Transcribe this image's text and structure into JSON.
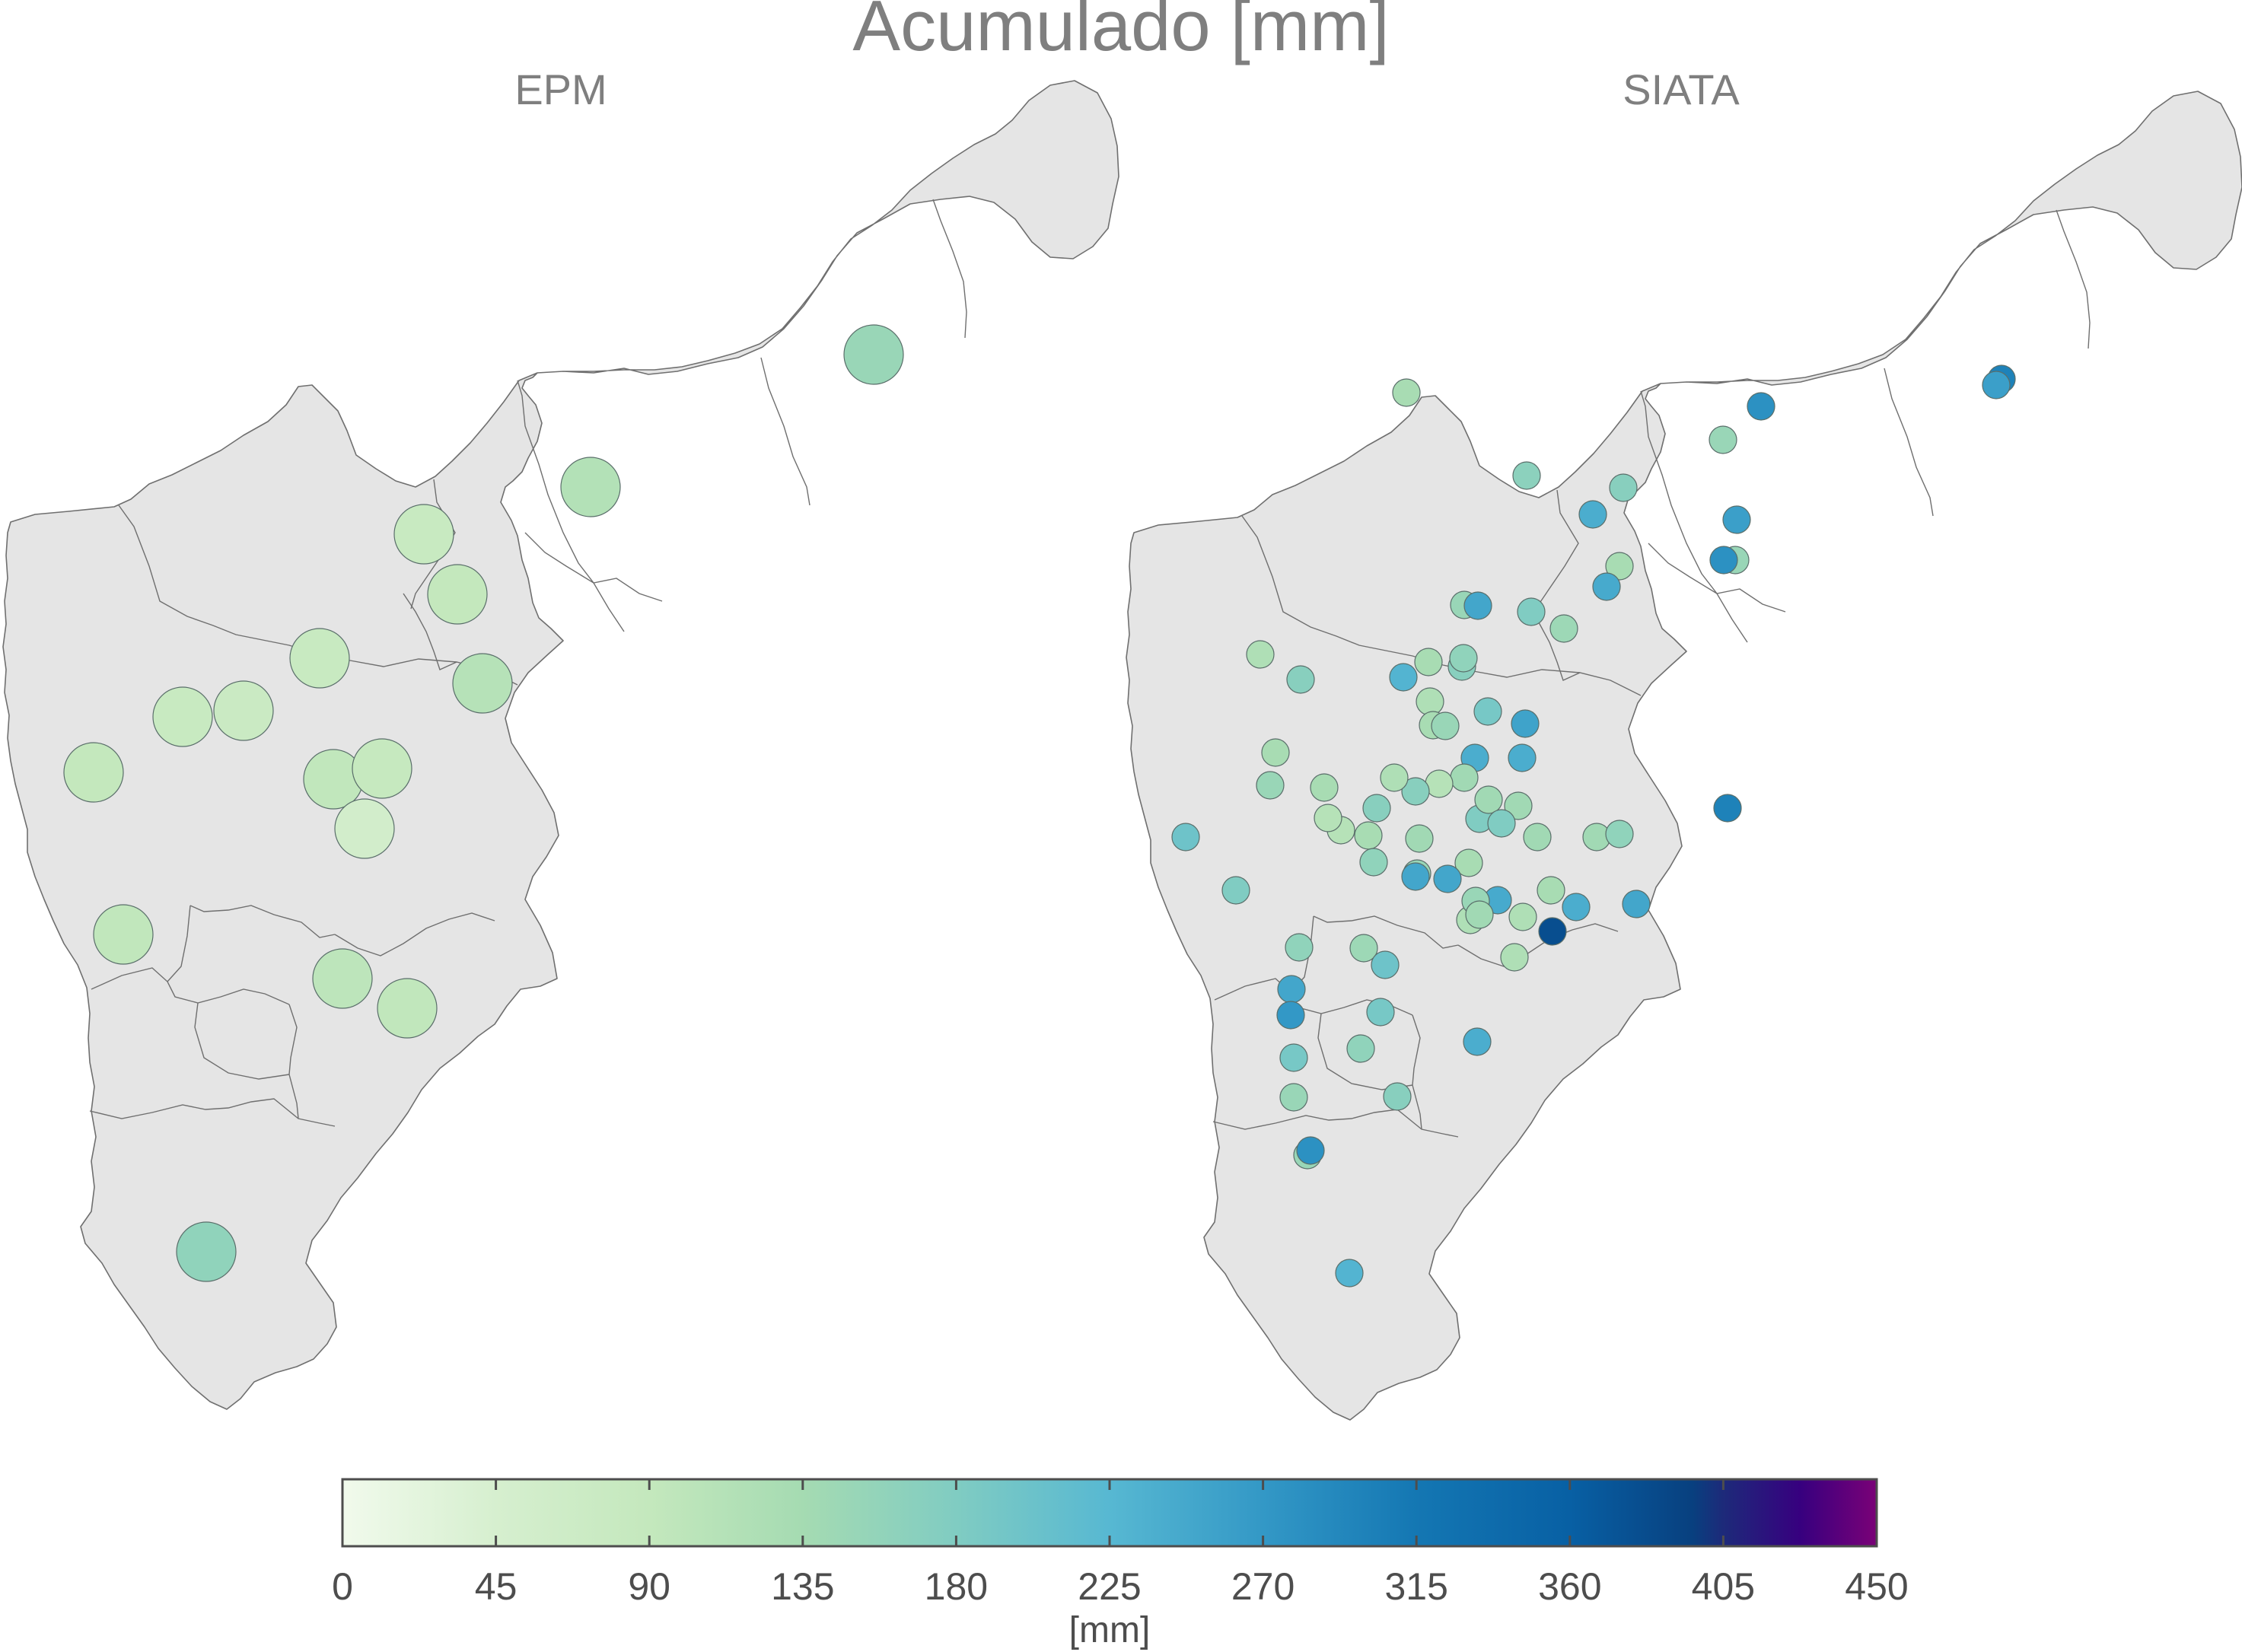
{
  "figure": {
    "title": "Acumulado [mm]",
    "panels": [
      {
        "title": "EPM"
      },
      {
        "title": "SIATA"
      }
    ]
  },
  "colorbar": {
    "label": "[mm]",
    "min": 0,
    "max": 450,
    "ticks": [
      "0",
      "45",
      "90",
      "135",
      "180",
      "225",
      "270",
      "315",
      "360",
      "405",
      "450"
    ],
    "colors": [
      "#e5f5e0",
      "#c7e9c0",
      "#a8ddb5",
      "#7bccc4",
      "#4eb3d3",
      "#2b8cbe",
      "#0868ac",
      "#084081",
      "#3f007d",
      "#7a0177"
    ]
  },
  "colors": {
    "basin_fill": "#e5e5e5",
    "basin_stroke": "#6f6f6f",
    "text": "#7f7f7f"
  },
  "chart_data": [
    {
      "type": "scatter",
      "title": "EPM",
      "note_units": "mm",
      "points": [
        {
          "value": 150
        },
        {
          "value": 115
        },
        {
          "value": 80
        },
        {
          "value": 90
        },
        {
          "value": 110
        },
        {
          "value": 80
        },
        {
          "value": 80
        },
        {
          "value": 75
        },
        {
          "value": 90
        },
        {
          "value": 95
        },
        {
          "value": 85
        },
        {
          "value": 55
        },
        {
          "value": 95
        },
        {
          "value": 100
        },
        {
          "value": 95
        },
        {
          "value": 160
        }
      ]
    },
    {
      "type": "scatter",
      "title": "SIATA",
      "note_units": "mm",
      "points": [
        {
          "value": 130
        },
        {
          "value": 280
        },
        {
          "value": 300
        },
        {
          "value": 260
        },
        {
          "value": 150
        },
        {
          "value": 170
        },
        {
          "value": 240
        },
        {
          "value": 260
        },
        {
          "value": 165
        },
        {
          "value": 130
        },
        {
          "value": 150
        },
        {
          "value": 245
        },
        {
          "value": 150
        },
        {
          "value": 250
        },
        {
          "value": 180
        },
        {
          "value": 145
        },
        {
          "value": 170
        },
        {
          "value": 120
        },
        {
          "value": 230
        },
        {
          "value": 170
        },
        {
          "value": 130
        },
        {
          "value": 120
        },
        {
          "value": 130
        },
        {
          "value": 150
        },
        {
          "value": 160
        },
        {
          "value": 255
        },
        {
          "value": 190
        },
        {
          "value": 240
        },
        {
          "value": 240
        },
        {
          "value": 140
        },
        {
          "value": 110
        },
        {
          "value": 170
        },
        {
          "value": 120
        },
        {
          "value": 130
        },
        {
          "value": 170
        },
        {
          "value": 130
        },
        {
          "value": 110
        },
        {
          "value": 110
        },
        {
          "value": 130
        },
        {
          "value": 150
        },
        {
          "value": 180
        },
        {
          "value": 130
        },
        {
          "value": 140
        },
        {
          "value": 140
        },
        {
          "value": 180
        },
        {
          "value": 140
        },
        {
          "value": 140
        },
        {
          "value": 160
        },
        {
          "value": 245
        },
        {
          "value": 130
        },
        {
          "value": 120
        },
        {
          "value": 120
        },
        {
          "value": 150
        },
        {
          "value": 250
        },
        {
          "value": 250
        },
        {
          "value": 120
        },
        {
          "value": 150
        },
        {
          "value": 140
        },
        {
          "value": 160
        },
        {
          "value": 140
        },
        {
          "value": 380
        },
        {
          "value": 250
        },
        {
          "value": 240
        },
        {
          "value": 145
        },
        {
          "value": 200
        },
        {
          "value": 160
        },
        {
          "value": 250
        },
        {
          "value": 270
        },
        {
          "value": 190
        },
        {
          "value": 150
        },
        {
          "value": 160
        },
        {
          "value": 190
        },
        {
          "value": 200
        },
        {
          "value": 180
        },
        {
          "value": 240
        },
        {
          "value": 170
        },
        {
          "value": 150
        },
        {
          "value": 280
        },
        {
          "value": 300
        },
        {
          "value": 230
        },
        {
          "value": 280
        }
      ]
    }
  ]
}
